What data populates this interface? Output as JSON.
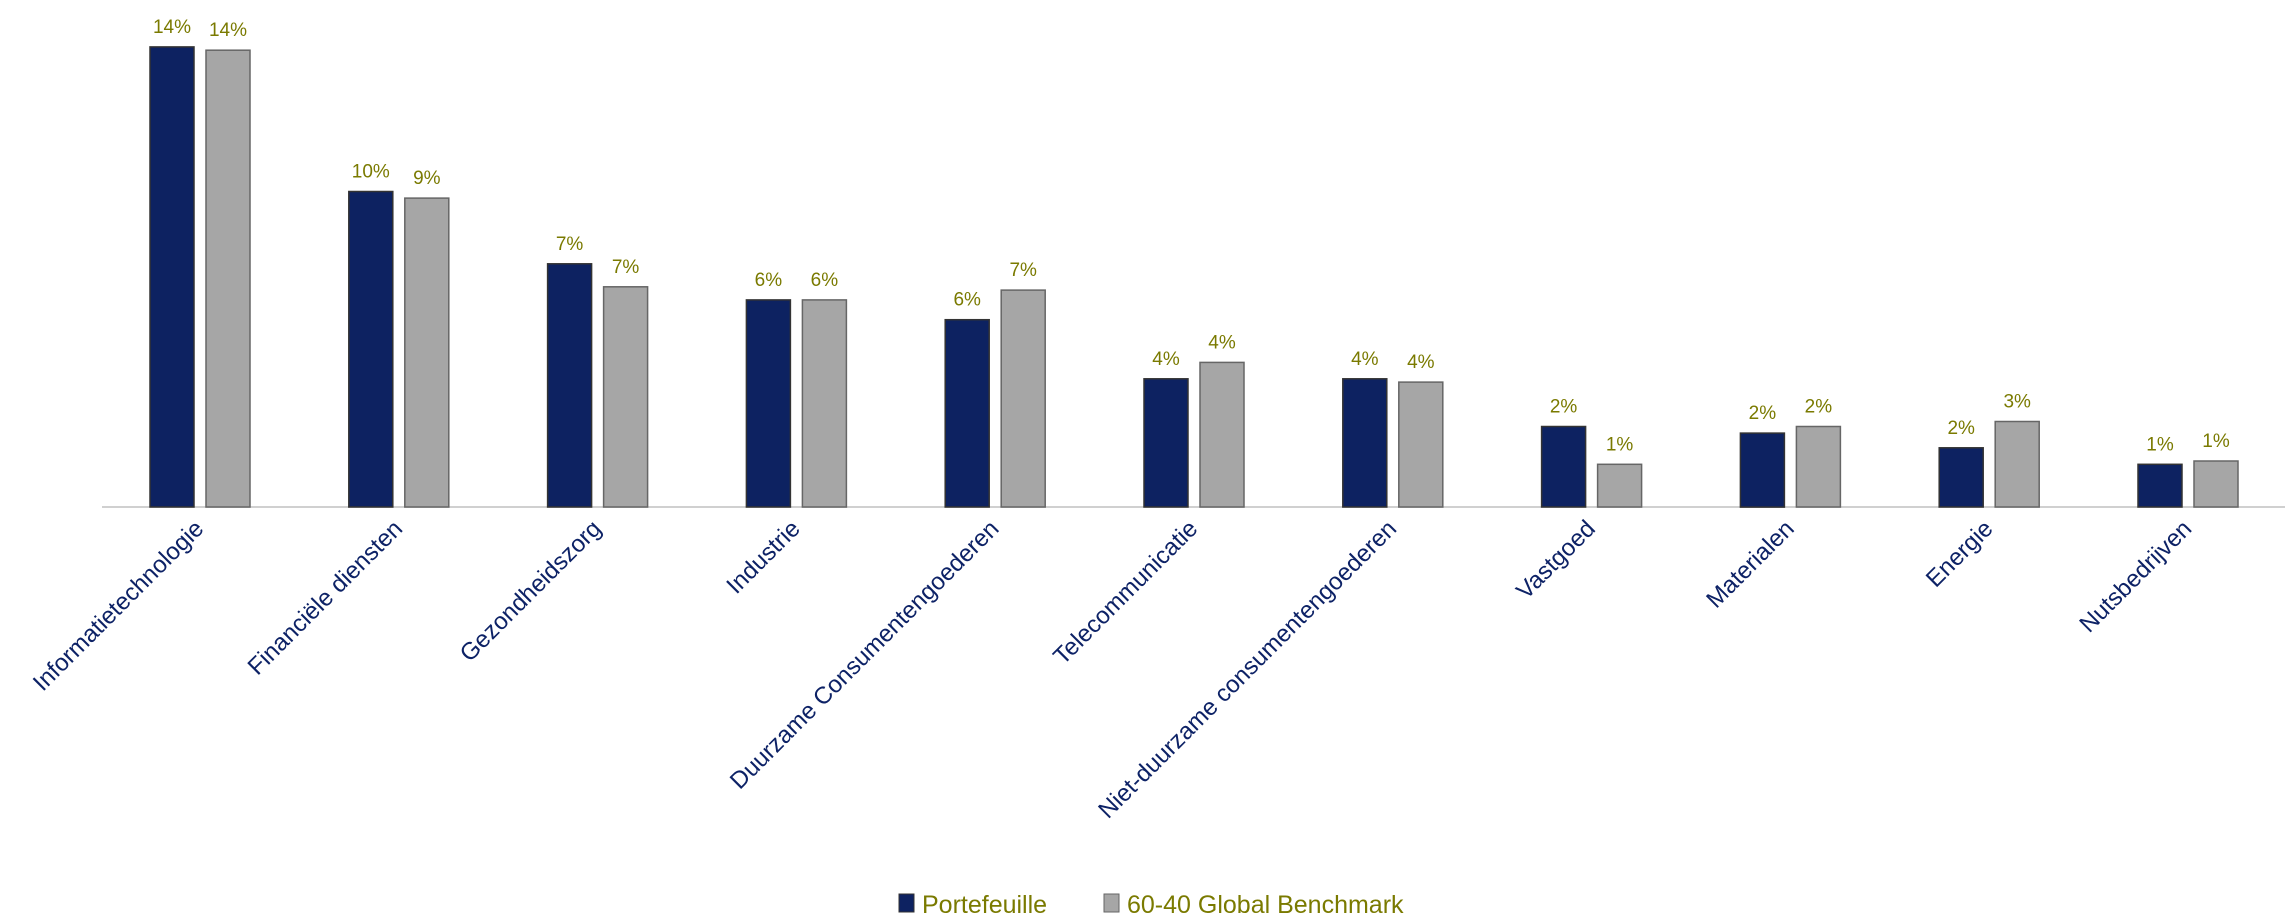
{
  "chart_data": {
    "type": "bar",
    "categories": [
      "Informatietechnologie",
      "Financiële diensten",
      "Gezondheidszorg",
      "Industrie",
      "Duurzame Consumentengoederen",
      "Telecommunicatie",
      "Niet-duurzame consumentengoederen",
      "Vastgoed",
      "Materialen",
      "Energie",
      "Nutsbedrijven"
    ],
    "series": [
      {
        "name": "Portefeuille",
        "values": [
          14.0,
          9.6,
          7.4,
          6.3,
          5.7,
          3.9,
          3.9,
          2.45,
          2.25,
          1.8,
          1.3
        ],
        "labels": [
          "14%",
          "10%",
          "7%",
          "6%",
          "6%",
          "4%",
          "4%",
          "2%",
          "2%",
          "2%",
          "1%"
        ],
        "color": "#0d2261"
      },
      {
        "name": "60-40 Global Benchmark",
        "values": [
          13.9,
          9.4,
          6.7,
          6.3,
          6.6,
          4.4,
          3.8,
          1.3,
          2.45,
          2.6,
          1.4
        ],
        "labels": [
          "14%",
          "9%",
          "7%",
          "6%",
          "7%",
          "4%",
          "4%",
          "1%",
          "2%",
          "3%",
          "1%"
        ],
        "color": "#a6a6a6"
      }
    ],
    "title": "",
    "xlabel": "",
    "ylabel": "",
    "ylim": [
      0,
      15
    ],
    "grid": false,
    "legend_position": "bottom"
  }
}
